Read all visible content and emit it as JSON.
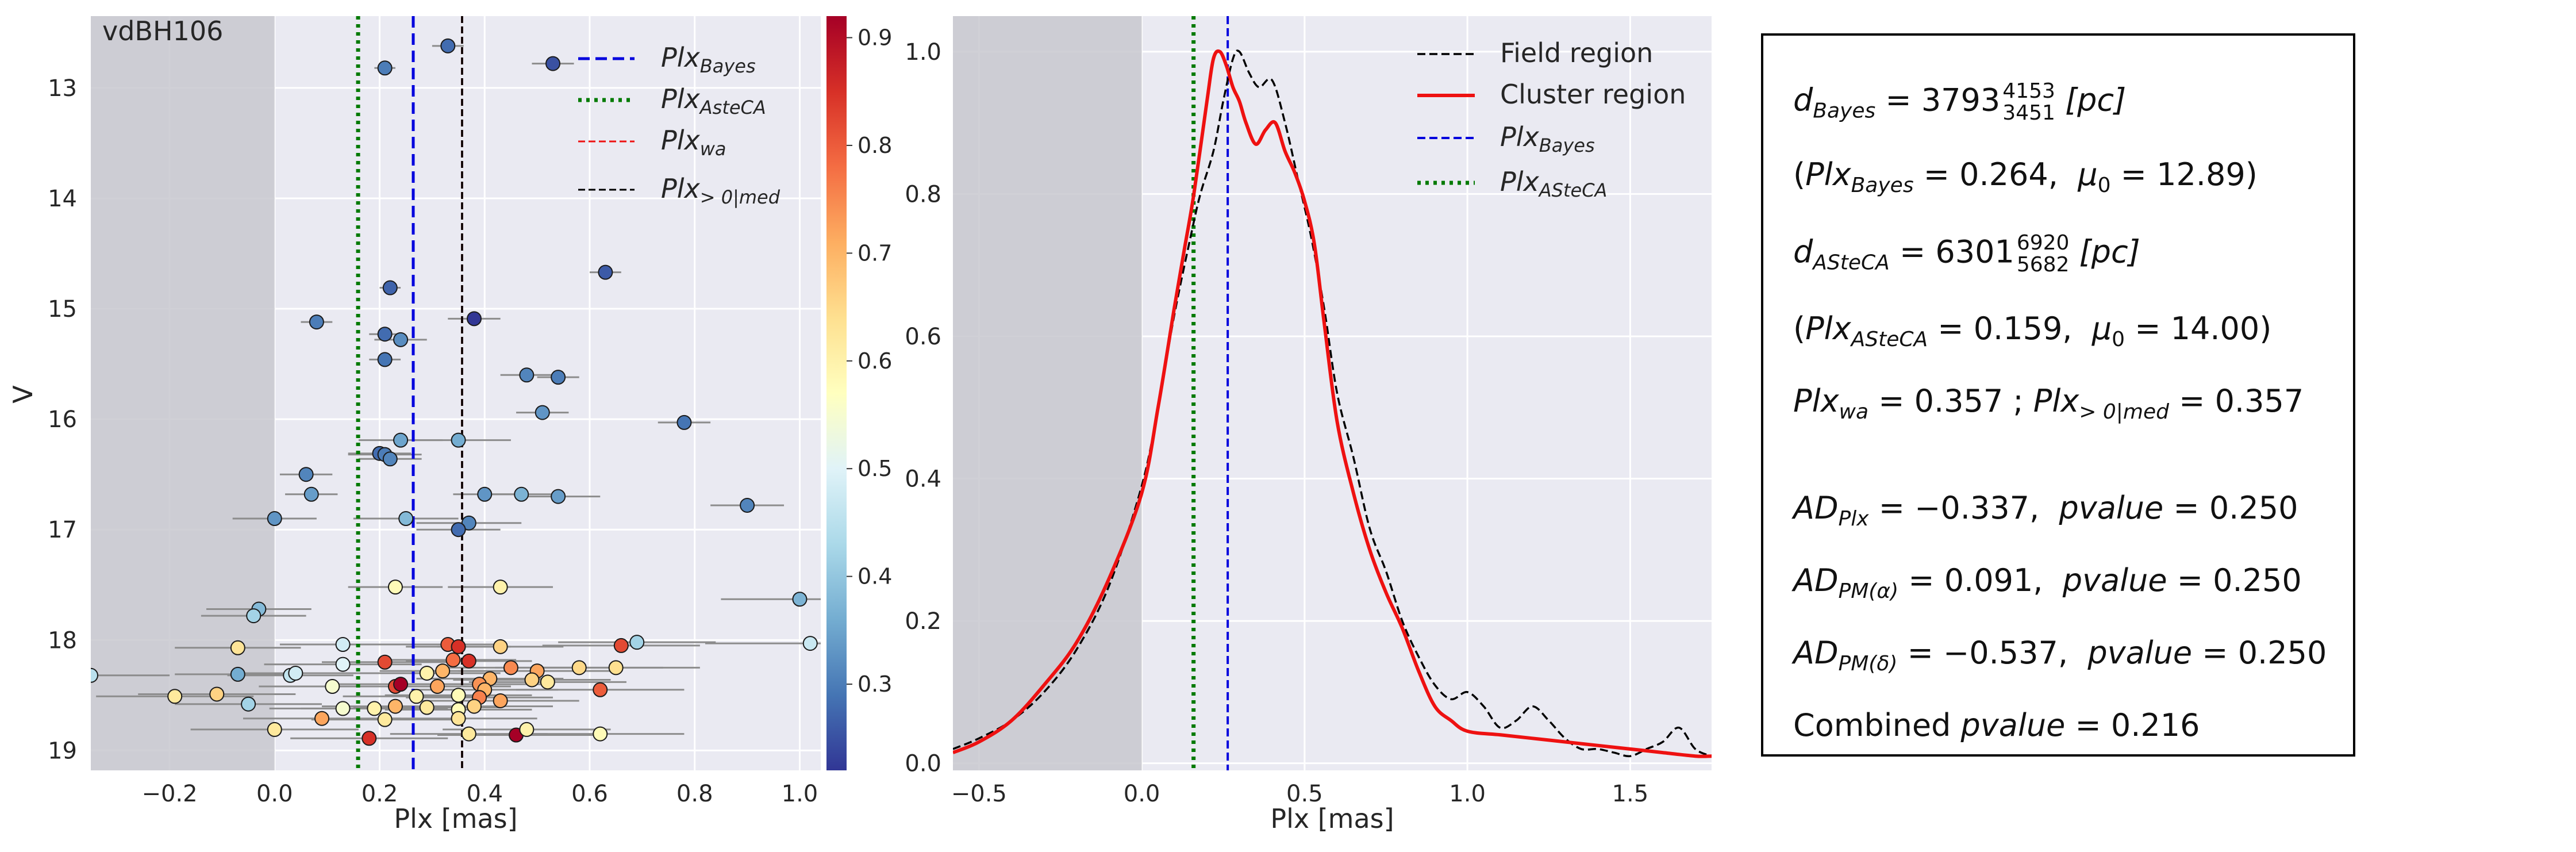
{
  "colors": {
    "panel_bg": "#eaeaf2",
    "grid": "#ffffff",
    "shade": "#c8c8cf",
    "blue": "#0000dd",
    "green": "#007a00",
    "red": "#ee1111",
    "black": "#000000",
    "err": "#8c8c8c"
  },
  "chart_data": [
    {
      "type": "scatter",
      "annotation": "vdBH106",
      "xlabel": "Plx [mas]",
      "ylabel": "V",
      "xlim": [
        -0.35,
        1.04
      ],
      "ylim": [
        19.18,
        12.35
      ],
      "y_inverted": true,
      "grid": true,
      "shaded_region": {
        "x_from": -0.35,
        "x_to": 0.0
      },
      "xticks": [
        -0.2,
        0.0,
        0.2,
        0.4,
        0.6,
        0.8,
        1.0
      ],
      "xtick_labels": [
        "−0.2",
        "0.0",
        "0.2",
        "0.4",
        "0.6",
        "0.8",
        "1.0"
      ],
      "yticks": [
        13,
        14,
        15,
        16,
        17,
        18,
        19
      ],
      "ytick_labels": [
        "13",
        "14",
        "15",
        "16",
        "17",
        "18",
        "19"
      ],
      "vlines": [
        {
          "label": "Plx",
          "sub": "Bayes",
          "x": 0.264,
          "style": "dashed",
          "color": "#0000dd"
        },
        {
          "label": "Plx",
          "sub": "AsteCA",
          "x": 0.159,
          "style": "dotted",
          "color": "#007a00"
        },
        {
          "label": "Plx",
          "sub": "wa",
          "x": 0.357,
          "style": "dashed",
          "color": "#ee1111"
        },
        {
          "label": "Plx",
          "sub": "> 0|med",
          "x": 0.357,
          "style": "dashed",
          "color": "#000000"
        }
      ],
      "legend_position": "top-right",
      "colorbar": {
        "range": [
          0.22,
          0.92
        ],
        "ticks": [
          0.3,
          0.4,
          0.5,
          0.6,
          0.7,
          0.8,
          0.9
        ],
        "tick_labels": [
          "0.3",
          "0.4",
          "0.5",
          "0.6",
          "0.7",
          "0.8",
          "0.9"
        ],
        "cmap": "RdYlBu_r"
      },
      "points": [
        {
          "x": 0.33,
          "y": 12.62,
          "c": 0.28,
          "e": 0.03
        },
        {
          "x": 0.21,
          "y": 12.82,
          "c": 0.3,
          "e": 0.02
        },
        {
          "x": 0.53,
          "y": 12.78,
          "c": 0.25,
          "e": 0.04
        },
        {
          "x": 0.63,
          "y": 14.67,
          "c": 0.26,
          "e": 0.03
        },
        {
          "x": 0.22,
          "y": 14.81,
          "c": 0.27,
          "e": 0.02
        },
        {
          "x": 0.08,
          "y": 15.12,
          "c": 0.3,
          "e": 0.03
        },
        {
          "x": 0.38,
          "y": 15.09,
          "c": 0.22,
          "e": 0.05
        },
        {
          "x": 0.21,
          "y": 15.23,
          "c": 0.28,
          "e": 0.03
        },
        {
          "x": 0.24,
          "y": 15.28,
          "c": 0.32,
          "e": 0.05
        },
        {
          "x": 0.21,
          "y": 15.46,
          "c": 0.29,
          "e": 0.03
        },
        {
          "x": 0.48,
          "y": 15.6,
          "c": 0.31,
          "e": 0.05
        },
        {
          "x": 0.54,
          "y": 15.62,
          "c": 0.3,
          "e": 0.04
        },
        {
          "x": 0.51,
          "y": 15.94,
          "c": 0.33,
          "e": 0.05
        },
        {
          "x": 0.78,
          "y": 16.03,
          "c": 0.29,
          "e": 0.05
        },
        {
          "x": 0.24,
          "y": 16.19,
          "c": 0.35,
          "e": 0.08
        },
        {
          "x": 0.35,
          "y": 16.19,
          "c": 0.36,
          "e": 0.1
        },
        {
          "x": 0.2,
          "y": 16.31,
          "c": 0.28,
          "e": 0.06
        },
        {
          "x": 0.21,
          "y": 16.32,
          "c": 0.3,
          "e": 0.07
        },
        {
          "x": 0.22,
          "y": 16.36,
          "c": 0.31,
          "e": 0.06
        },
        {
          "x": 0.06,
          "y": 16.5,
          "c": 0.31,
          "e": 0.05
        },
        {
          "x": 0.4,
          "y": 16.68,
          "c": 0.33,
          "e": 0.06
        },
        {
          "x": 0.07,
          "y": 16.68,
          "c": 0.34,
          "e": 0.05
        },
        {
          "x": 0.47,
          "y": 16.68,
          "c": 0.37,
          "e": 0.07
        },
        {
          "x": 0.54,
          "y": 16.7,
          "c": 0.34,
          "e": 0.08
        },
        {
          "x": 0.9,
          "y": 16.78,
          "c": 0.31,
          "e": 0.07
        },
        {
          "x": 0.0,
          "y": 16.9,
          "c": 0.33,
          "e": 0.08
        },
        {
          "x": 0.37,
          "y": 16.94,
          "c": 0.31,
          "e": 0.1
        },
        {
          "x": 0.25,
          "y": 16.9,
          "c": 0.38,
          "e": 0.1
        },
        {
          "x": 0.35,
          "y": 17.0,
          "c": 0.28,
          "e": 0.08
        },
        {
          "x": 0.23,
          "y": 17.52,
          "c": 0.58,
          "e": 0.09
        },
        {
          "x": 0.43,
          "y": 17.52,
          "c": 0.6,
          "e": 0.1
        },
        {
          "x": -0.03,
          "y": 17.72,
          "c": 0.38,
          "e": 0.1
        },
        {
          "x": -0.04,
          "y": 17.78,
          "c": 0.42,
          "e": 0.1
        },
        {
          "x": 1.0,
          "y": 17.63,
          "c": 0.37,
          "e": 0.15
        },
        {
          "x": -0.07,
          "y": 18.07,
          "c": 0.63,
          "e": 0.12
        },
        {
          "x": 0.13,
          "y": 18.04,
          "c": 0.48,
          "e": 0.12
        },
        {
          "x": 0.33,
          "y": 18.04,
          "c": 0.8,
          "e": 0.1
        },
        {
          "x": 0.35,
          "y": 18.06,
          "c": 0.85,
          "e": 0.1
        },
        {
          "x": 0.43,
          "y": 18.06,
          "c": 0.66,
          "e": 0.12
        },
        {
          "x": 0.66,
          "y": 18.05,
          "c": 0.82,
          "e": 0.15
        },
        {
          "x": 0.69,
          "y": 18.02,
          "c": 0.42,
          "e": 0.15
        },
        {
          "x": 1.02,
          "y": 18.03,
          "c": 0.47,
          "e": 0.2
        },
        {
          "x": 0.13,
          "y": 18.22,
          "c": 0.5,
          "e": 0.15
        },
        {
          "x": 0.21,
          "y": 18.2,
          "c": 0.82,
          "e": 0.12
        },
        {
          "x": 0.34,
          "y": 18.18,
          "c": 0.78,
          "e": 0.12
        },
        {
          "x": 0.37,
          "y": 18.19,
          "c": 0.85,
          "e": 0.12
        },
        {
          "x": 0.32,
          "y": 18.28,
          "c": 0.7,
          "e": 0.12
        },
        {
          "x": 0.29,
          "y": 18.3,
          "c": 0.6,
          "e": 0.14
        },
        {
          "x": 0.45,
          "y": 18.25,
          "c": 0.75,
          "e": 0.13
        },
        {
          "x": 0.5,
          "y": 18.28,
          "c": 0.72,
          "e": 0.15
        },
        {
          "x": 0.58,
          "y": 18.25,
          "c": 0.65,
          "e": 0.16
        },
        {
          "x": 0.65,
          "y": 18.25,
          "c": 0.64,
          "e": 0.16
        },
        {
          "x": -0.35,
          "y": 18.32,
          "c": 0.45,
          "e": 0.15
        },
        {
          "x": -0.07,
          "y": 18.31,
          "c": 0.36,
          "e": 0.12
        },
        {
          "x": 0.03,
          "y": 18.32,
          "c": 0.46,
          "e": 0.12
        },
        {
          "x": 0.04,
          "y": 18.3,
          "c": 0.48,
          "e": 0.12
        },
        {
          "x": 0.41,
          "y": 18.35,
          "c": 0.7,
          "e": 0.14
        },
        {
          "x": 0.49,
          "y": 18.36,
          "c": 0.66,
          "e": 0.15
        },
        {
          "x": 0.52,
          "y": 18.38,
          "c": 0.62,
          "e": 0.15
        },
        {
          "x": 0.11,
          "y": 18.42,
          "c": 0.55,
          "e": 0.14
        },
        {
          "x": 0.23,
          "y": 18.42,
          "c": 0.82,
          "e": 0.13
        },
        {
          "x": 0.24,
          "y": 18.4,
          "c": 0.95,
          "e": 0.13
        },
        {
          "x": 0.31,
          "y": 18.42,
          "c": 0.72,
          "e": 0.14
        },
        {
          "x": 0.39,
          "y": 18.4,
          "c": 0.74,
          "e": 0.14
        },
        {
          "x": 0.4,
          "y": 18.45,
          "c": 0.7,
          "e": 0.14
        },
        {
          "x": 0.62,
          "y": 18.45,
          "c": 0.8,
          "e": 0.16
        },
        {
          "x": -0.19,
          "y": 18.51,
          "c": 0.62,
          "e": 0.15
        },
        {
          "x": -0.11,
          "y": 18.49,
          "c": 0.66,
          "e": 0.15
        },
        {
          "x": 0.27,
          "y": 18.51,
          "c": 0.6,
          "e": 0.14
        },
        {
          "x": 0.35,
          "y": 18.5,
          "c": 0.58,
          "e": 0.14
        },
        {
          "x": 0.39,
          "y": 18.52,
          "c": 0.76,
          "e": 0.14
        },
        {
          "x": 0.43,
          "y": 18.55,
          "c": 0.72,
          "e": 0.15
        },
        {
          "x": -0.05,
          "y": 18.58,
          "c": 0.42,
          "e": 0.14
        },
        {
          "x": 0.13,
          "y": 18.62,
          "c": 0.55,
          "e": 0.14
        },
        {
          "x": 0.19,
          "y": 18.62,
          "c": 0.6,
          "e": 0.14
        },
        {
          "x": 0.23,
          "y": 18.6,
          "c": 0.7,
          "e": 0.14
        },
        {
          "x": 0.29,
          "y": 18.61,
          "c": 0.62,
          "e": 0.14
        },
        {
          "x": 0.35,
          "y": 18.63,
          "c": 0.58,
          "e": 0.14
        },
        {
          "x": 0.38,
          "y": 18.6,
          "c": 0.66,
          "e": 0.15
        },
        {
          "x": 0.09,
          "y": 18.71,
          "c": 0.72,
          "e": 0.15
        },
        {
          "x": 0.21,
          "y": 18.72,
          "c": 0.62,
          "e": 0.14
        },
        {
          "x": 0.35,
          "y": 18.71,
          "c": 0.63,
          "e": 0.15
        },
        {
          "x": 0.0,
          "y": 18.81,
          "c": 0.62,
          "e": 0.16
        },
        {
          "x": 0.18,
          "y": 18.89,
          "c": 0.85,
          "e": 0.15
        },
        {
          "x": 0.37,
          "y": 18.85,
          "c": 0.62,
          "e": 0.15
        },
        {
          "x": 0.46,
          "y": 18.86,
          "c": 0.95,
          "e": 0.15
        },
        {
          "x": 0.48,
          "y": 18.81,
          "c": 0.6,
          "e": 0.16
        },
        {
          "x": 0.62,
          "y": 18.85,
          "c": 0.58,
          "e": 0.16
        }
      ]
    },
    {
      "type": "line",
      "xlabel": "Plx [mas]",
      "ylabel": "",
      "xlim": [
        -0.58,
        1.75
      ],
      "ylim": [
        -0.01,
        1.05
      ],
      "grid": true,
      "shaded_region": {
        "x_from": -0.58,
        "x_to": 0.0
      },
      "xticks": [
        -0.5,
        0.0,
        0.5,
        1.0,
        1.5
      ],
      "xtick_labels": [
        "−0.5",
        "0.0",
        "0.5",
        "1.0",
        "1.5"
      ],
      "yticks": [
        0.0,
        0.2,
        0.4,
        0.6,
        0.8,
        1.0
      ],
      "ytick_labels": [
        "0.0",
        "0.2",
        "0.4",
        "0.6",
        "0.8",
        "1.0"
      ],
      "legend_position": "top-right",
      "series": [
        {
          "name": "Field region",
          "style": "dashed",
          "color": "#000000",
          "x": [
            -0.58,
            -0.5,
            -0.4,
            -0.3,
            -0.2,
            -0.1,
            0.0,
            0.05,
            0.1,
            0.15,
            0.18,
            0.22,
            0.25,
            0.28,
            0.3,
            0.33,
            0.36,
            0.4,
            0.44,
            0.48,
            0.52,
            0.56,
            0.6,
            0.65,
            0.7,
            0.75,
            0.8,
            0.85,
            0.9,
            0.95,
            1.0,
            1.05,
            1.1,
            1.15,
            1.2,
            1.25,
            1.3,
            1.35,
            1.4,
            1.45,
            1.5,
            1.55,
            1.6,
            1.65,
            1.7,
            1.75
          ],
          "y": [
            0.02,
            0.035,
            0.06,
            0.1,
            0.16,
            0.25,
            0.39,
            0.5,
            0.63,
            0.74,
            0.8,
            0.86,
            0.93,
            0.99,
            1.0,
            0.97,
            0.95,
            0.96,
            0.9,
            0.82,
            0.74,
            0.64,
            0.52,
            0.43,
            0.33,
            0.27,
            0.2,
            0.15,
            0.11,
            0.09,
            0.1,
            0.08,
            0.05,
            0.06,
            0.08,
            0.06,
            0.035,
            0.02,
            0.02,
            0.015,
            0.01,
            0.02,
            0.03,
            0.05,
            0.02,
            0.01
          ]
        },
        {
          "name": "Cluster region",
          "style": "solid",
          "color": "#ee1111",
          "x": [
            -0.58,
            -0.5,
            -0.4,
            -0.3,
            -0.2,
            -0.1,
            0.0,
            0.05,
            0.1,
            0.13,
            0.16,
            0.2,
            0.22,
            0.24,
            0.26,
            0.28,
            0.3,
            0.32,
            0.35,
            0.38,
            0.41,
            0.44,
            0.47,
            0.5,
            0.53,
            0.56,
            0.6,
            0.65,
            0.7,
            0.75,
            0.8,
            0.85,
            0.9,
            0.95,
            1.0,
            1.1,
            1.2,
            1.3,
            1.4,
            1.5,
            1.6,
            1.7,
            1.75
          ],
          "y": [
            0.015,
            0.03,
            0.06,
            0.11,
            0.17,
            0.26,
            0.38,
            0.5,
            0.64,
            0.72,
            0.8,
            0.93,
            0.99,
            1.0,
            0.98,
            0.95,
            0.93,
            0.9,
            0.87,
            0.89,
            0.9,
            0.86,
            0.83,
            0.79,
            0.73,
            0.62,
            0.48,
            0.38,
            0.3,
            0.24,
            0.19,
            0.13,
            0.08,
            0.06,
            0.045,
            0.04,
            0.035,
            0.03,
            0.025,
            0.02,
            0.015,
            0.01,
            0.01
          ]
        }
      ],
      "vlines": [
        {
          "label": "Plx",
          "sub": "Bayes",
          "x": 0.264,
          "style": "dashed",
          "color": "#0000dd"
        },
        {
          "label": "Plx",
          "sub": "ASteCA",
          "x": 0.159,
          "style": "dotted",
          "color": "#007a00"
        }
      ]
    }
  ],
  "textbox": {
    "d_bayes_value": "3793",
    "d_bayes_up": "4153",
    "d_bayes_low": "3451",
    "d_unit": "[pc]",
    "plx_bayes": "0.264",
    "mu0_bayes": "12.89",
    "d_asteca_value": "6301",
    "d_asteca_up": "6920",
    "d_asteca_low": "5682",
    "plx_asteca": "0.159",
    "mu0_asteca": "14.00",
    "plx_wa": "0.357",
    "plx_med": "0.357",
    "ad_plx": "−0.337",
    "ad_plx_p": "0.250",
    "ad_pma": "0.091",
    "ad_pma_p": "0.250",
    "ad_pmd": "−0.537",
    "ad_pmd_p": "0.250",
    "combined_label": "Combined",
    "combined_p": "0.216"
  }
}
